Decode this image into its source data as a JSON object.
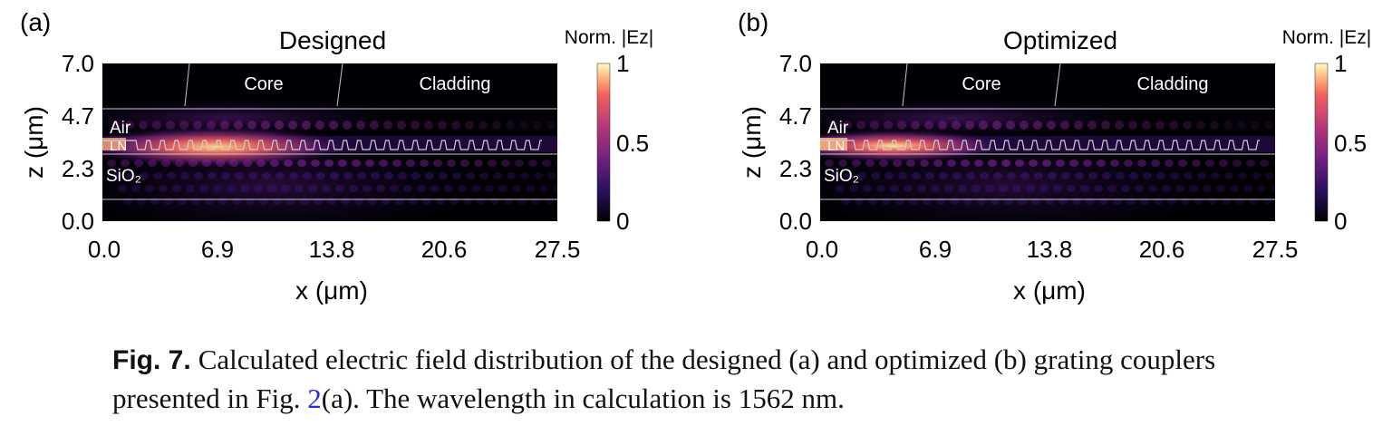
{
  "panels": [
    {
      "id": "a",
      "label": "(a)",
      "title": "Designed",
      "colorbar_title": "Norm. |Ez|",
      "colorbar_ticks": [
        "1",
        "0.5",
        "0"
      ],
      "region_labels": {
        "core": "Core",
        "cladding": "Cladding",
        "air": "Air",
        "ln": "LN",
        "sio2": "SiO₂"
      },
      "xlabel": "x (μm)",
      "ylabel": "z (μm)",
      "xticks": [
        "0.0",
        "6.9",
        "13.8",
        "20.6",
        "27.5"
      ],
      "yticks": [
        "7.0",
        "4.7",
        "2.3",
        "0.0"
      ],
      "hotspot_x": 6.8
    },
    {
      "id": "b",
      "label": "(b)",
      "title": "Optimized",
      "colorbar_title": "Norm. |Ez|",
      "colorbar_ticks": [
        "1",
        "0.5",
        "0"
      ],
      "region_labels": {
        "core": "Core",
        "cladding": "Cladding",
        "air": "Air",
        "ln": "LN",
        "sio2": "SiO₂"
      },
      "xlabel": "x (μm)",
      "ylabel": "z (μm)",
      "xticks": [
        "0.0",
        "6.9",
        "13.8",
        "20.6",
        "27.5"
      ],
      "yticks": [
        "7.0",
        "4.7",
        "2.3",
        "0.0"
      ],
      "hotspot_x": 4.4
    }
  ],
  "caption": {
    "fig_label": "Fig. 7.",
    "text_1": "Calculated electric field distribution of the designed (a) and optimized (b) grating couplers presented in Fig. ",
    "ref": "2",
    "text_2": "(a). The wavelength in calculation is 1562 nm."
  },
  "colors": {
    "background": "#000004",
    "colormap": "magma",
    "structure_lines": "#c8c8c8"
  }
}
